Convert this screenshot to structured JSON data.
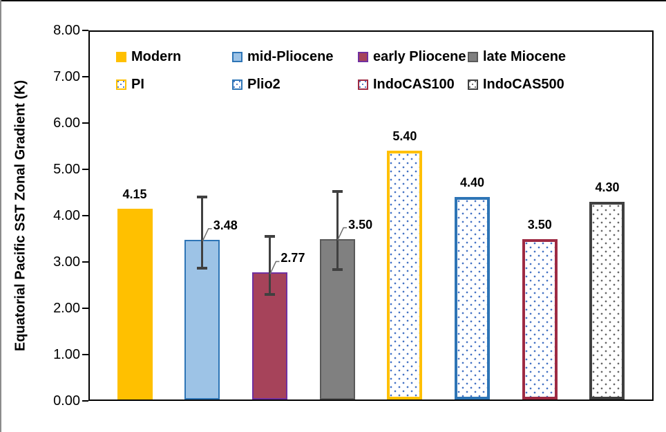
{
  "chart_data": {
    "type": "bar",
    "title": "",
    "ylabel": "Equatorial Pacific SST Zonal Gradient (K)",
    "xlabel": "",
    "ylim": [
      0,
      8
    ],
    "ytick_step": 1,
    "ytick_labels": [
      "0.00",
      "1.00",
      "2.00",
      "3.00",
      "4.00",
      "5.00",
      "6.00",
      "7.00",
      "8.00"
    ],
    "grid": false,
    "legend_position": "top-inside-two-rows",
    "legend_rows": [
      [
        "Modern",
        "mid-Pliocene",
        "early Pliocene",
        "late Miocene"
      ],
      [
        "PI",
        "Plio2",
        "IndoCAS100",
        "IndoCAS500"
      ]
    ],
    "bars": [
      {
        "label": "Modern",
        "value": 4.15,
        "display": "4.15",
        "fill": "#FFC000",
        "border": "#FFC000",
        "pattern": false,
        "dot": null,
        "error": null,
        "label_style": "above"
      },
      {
        "label": "mid-Pliocene",
        "value": 3.48,
        "display": "3.48",
        "fill": "#9DC3E6",
        "border": "#2E75B6",
        "pattern": false,
        "dot": null,
        "error": {
          "high": 4.4,
          "low": 2.87
        },
        "label_style": "leader"
      },
      {
        "label": "early Pliocene",
        "value": 2.77,
        "display": "2.77",
        "fill": "#A6435A",
        "border": "#7030A0",
        "pattern": false,
        "dot": null,
        "error": {
          "high": 3.55,
          "low": 2.3
        },
        "label_style": "leader"
      },
      {
        "label": "late Miocene",
        "value": 3.5,
        "display": "3.50",
        "fill": "#808080",
        "border": "#595959",
        "pattern": false,
        "dot": null,
        "error": {
          "high": 4.52,
          "low": 2.83
        },
        "label_style": "leader"
      },
      {
        "label": "PI",
        "value": 5.4,
        "display": "5.40",
        "fill": "#FFFFFF",
        "border": "#FFC000",
        "pattern": true,
        "dot": "#4472C4",
        "error": null,
        "label_style": "above"
      },
      {
        "label": "Plio2",
        "value": 4.4,
        "display": "4.40",
        "fill": "#FFFFFF",
        "border": "#2E75B6",
        "pattern": true,
        "dot": "#4472C4",
        "error": null,
        "label_style": "above"
      },
      {
        "label": "IndoCAS100",
        "value": 3.5,
        "display": "3.50",
        "fill": "#FFFFFF",
        "border": "#9E2B43",
        "pattern": true,
        "dot": "#4472C4",
        "error": null,
        "label_style": "above"
      },
      {
        "label": "IndoCAS500",
        "value": 4.3,
        "display": "4.30",
        "fill": "#FFFFFF",
        "border": "#404040",
        "pattern": true,
        "dot": "#666666",
        "error": null,
        "label_style": "above"
      }
    ],
    "colors": {
      "axis": "#000000",
      "error_bar": "#404040",
      "leader_line": "#6e6e6e",
      "background": "#ffffff"
    }
  }
}
